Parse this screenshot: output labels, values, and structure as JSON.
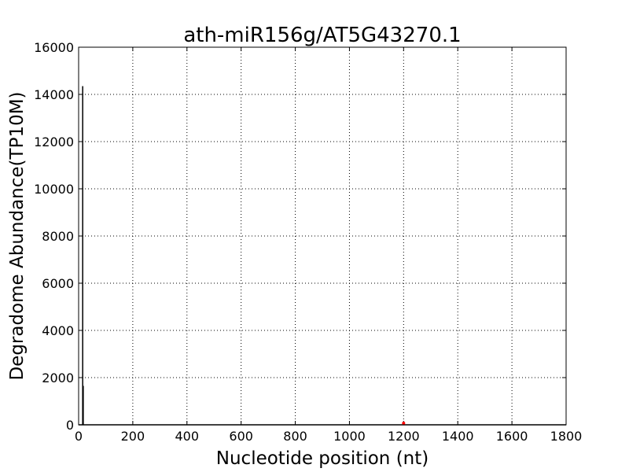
{
  "chart_data": {
    "type": "line",
    "title": "ath-miR156g/AT5G43270.1",
    "xlabel": "Nucleotide position (nt)",
    "ylabel": "Degradome Abundance(TP10M)",
    "xlim": [
      0,
      1800
    ],
    "ylim": [
      0,
      16000
    ],
    "xticks": [
      "0",
      "200",
      "400",
      "600",
      "800",
      "1000",
      "1200",
      "1400",
      "1600",
      "1800"
    ],
    "yticks": [
      "0",
      "2000",
      "4000",
      "6000",
      "8000",
      "10000",
      "12000",
      "14000",
      "16000"
    ],
    "grid": true,
    "series": [
      {
        "color": "#000000",
        "x": [
          15,
          17
        ],
        "values": [
          14350,
          1650
        ]
      }
    ],
    "highlight": {
      "color": "#ff0000",
      "x": 1200,
      "y": 0
    }
  }
}
